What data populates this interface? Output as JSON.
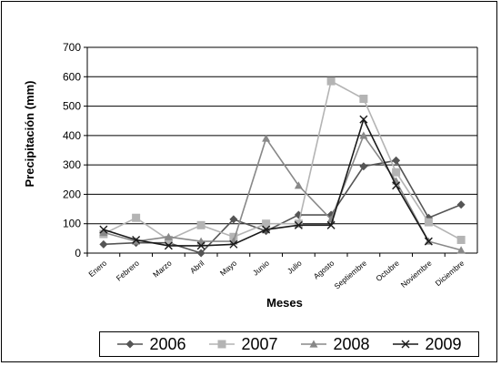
{
  "chart_data": {
    "type": "line",
    "title": "",
    "xlabel": "Meses",
    "ylabel": "Precipitación (mm)",
    "ylim": [
      0,
      700
    ],
    "yticks": [
      0,
      100,
      200,
      300,
      400,
      500,
      600,
      700
    ],
    "grid": true,
    "legend_position": "bottom",
    "categories": [
      "Enero",
      "Febrero",
      "Marzo",
      "Abril",
      "Mayo",
      "Junio",
      "Julio",
      "Agosto",
      "Septiembre",
      "Octubre",
      "Noviembre",
      "Diciembre"
    ],
    "series": [
      {
        "name": "2006",
        "marker": "diamond",
        "color": "#555555",
        "values": [
          30,
          35,
          35,
          0,
          115,
          75,
          130,
          130,
          295,
          315,
          120,
          165
        ]
      },
      {
        "name": "2007",
        "marker": "square",
        "color": "#b4b4b4",
        "values": [
          65,
          120,
          45,
          95,
          55,
          100,
          100,
          585,
          525,
          275,
          105,
          45
        ]
      },
      {
        "name": "2008",
        "marker": "triangle",
        "color": "#888888",
        "values": [
          70,
          40,
          55,
          40,
          40,
          390,
          230,
          115,
          400,
          245,
          40,
          10
        ]
      },
      {
        "name": "2009",
        "marker": "x",
        "color": "#1a1a1a",
        "values": [
          80,
          45,
          25,
          25,
          30,
          80,
          95,
          95,
          455,
          230,
          40,
          null
        ]
      }
    ]
  }
}
